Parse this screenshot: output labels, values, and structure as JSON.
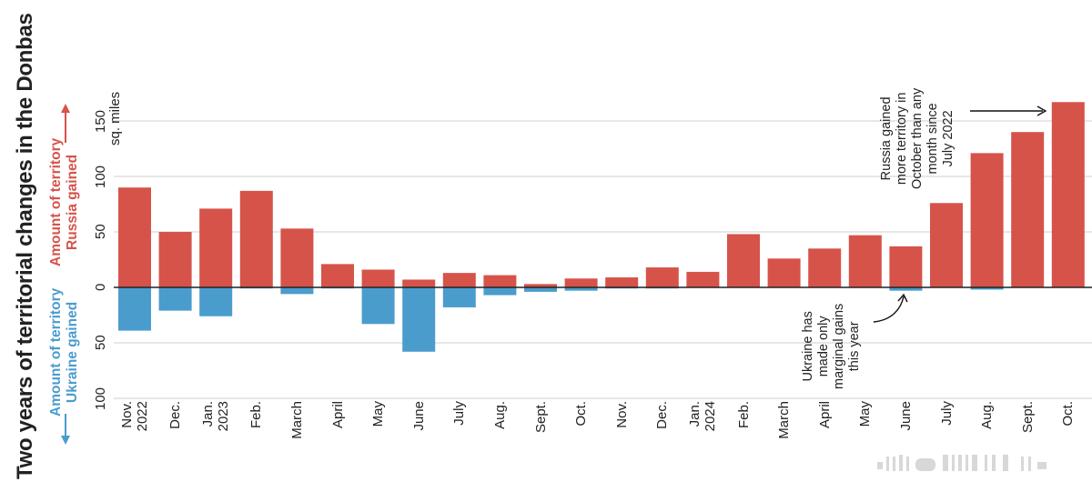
{
  "chart_data": {
    "type": "bar",
    "title": "Two years of territorial changes in the Donbas",
    "unit": "sq. miles",
    "y_label_russia": [
      "Amount of territory",
      "Russia gained"
    ],
    "y_label_ukraine": [
      "Amount of territory",
      "Ukraine gained"
    ],
    "y_ticks": [
      {
        "value": 150,
        "label": "150"
      },
      {
        "value": 100,
        "label": "100"
      },
      {
        "value": 50,
        "label": "50"
      },
      {
        "value": 0,
        "label": "0"
      },
      {
        "value": -50,
        "label": "50"
      },
      {
        "value": -100,
        "label": "100"
      }
    ],
    "ylim": [
      -100,
      150
    ],
    "categories": [
      [
        "Nov.",
        "2022"
      ],
      [
        "Dec."
      ],
      [
        "Jan.",
        "2023"
      ],
      [
        "Feb."
      ],
      [
        "March"
      ],
      [
        "April"
      ],
      [
        "May"
      ],
      [
        "June"
      ],
      [
        "July"
      ],
      [
        "Aug."
      ],
      [
        "Sept."
      ],
      [
        "Oct."
      ],
      [
        "Nov."
      ],
      [
        "Dec."
      ],
      [
        "Jan.",
        "2024"
      ],
      [
        "Feb."
      ],
      [
        "March"
      ],
      [
        "April"
      ],
      [
        "May"
      ],
      [
        "June"
      ],
      [
        "July"
      ],
      [
        "Aug."
      ],
      [
        "Sept."
      ],
      [
        "Oct."
      ]
    ],
    "series": [
      {
        "name": "Russia gained",
        "color": "#d6534a",
        "values": [
          90,
          50,
          71,
          87,
          53,
          21,
          16,
          7,
          13,
          11,
          3,
          8,
          9,
          18,
          14,
          48,
          26,
          35,
          47,
          37,
          76,
          121,
          140,
          167
        ]
      },
      {
        "name": "Ukraine gained",
        "color": "#4a9ccd",
        "values": [
          -39,
          -21,
          -26,
          -1,
          -6,
          -1,
          -33,
          -58,
          -18,
          -7,
          -4,
          -3,
          -1,
          -1,
          0,
          0,
          0,
          0,
          0,
          -3,
          0,
          -2,
          0,
          0
        ]
      }
    ],
    "annotations": [
      {
        "text": [
          "Russia gained",
          "more territory in",
          "October than any",
          "month since",
          "July 2022"
        ],
        "target": "Oct."
      },
      {
        "text": [
          "Ukraine has",
          "made only",
          "marginal gains",
          "this year"
        ],
        "target": "June"
      }
    ],
    "grid": true
  }
}
